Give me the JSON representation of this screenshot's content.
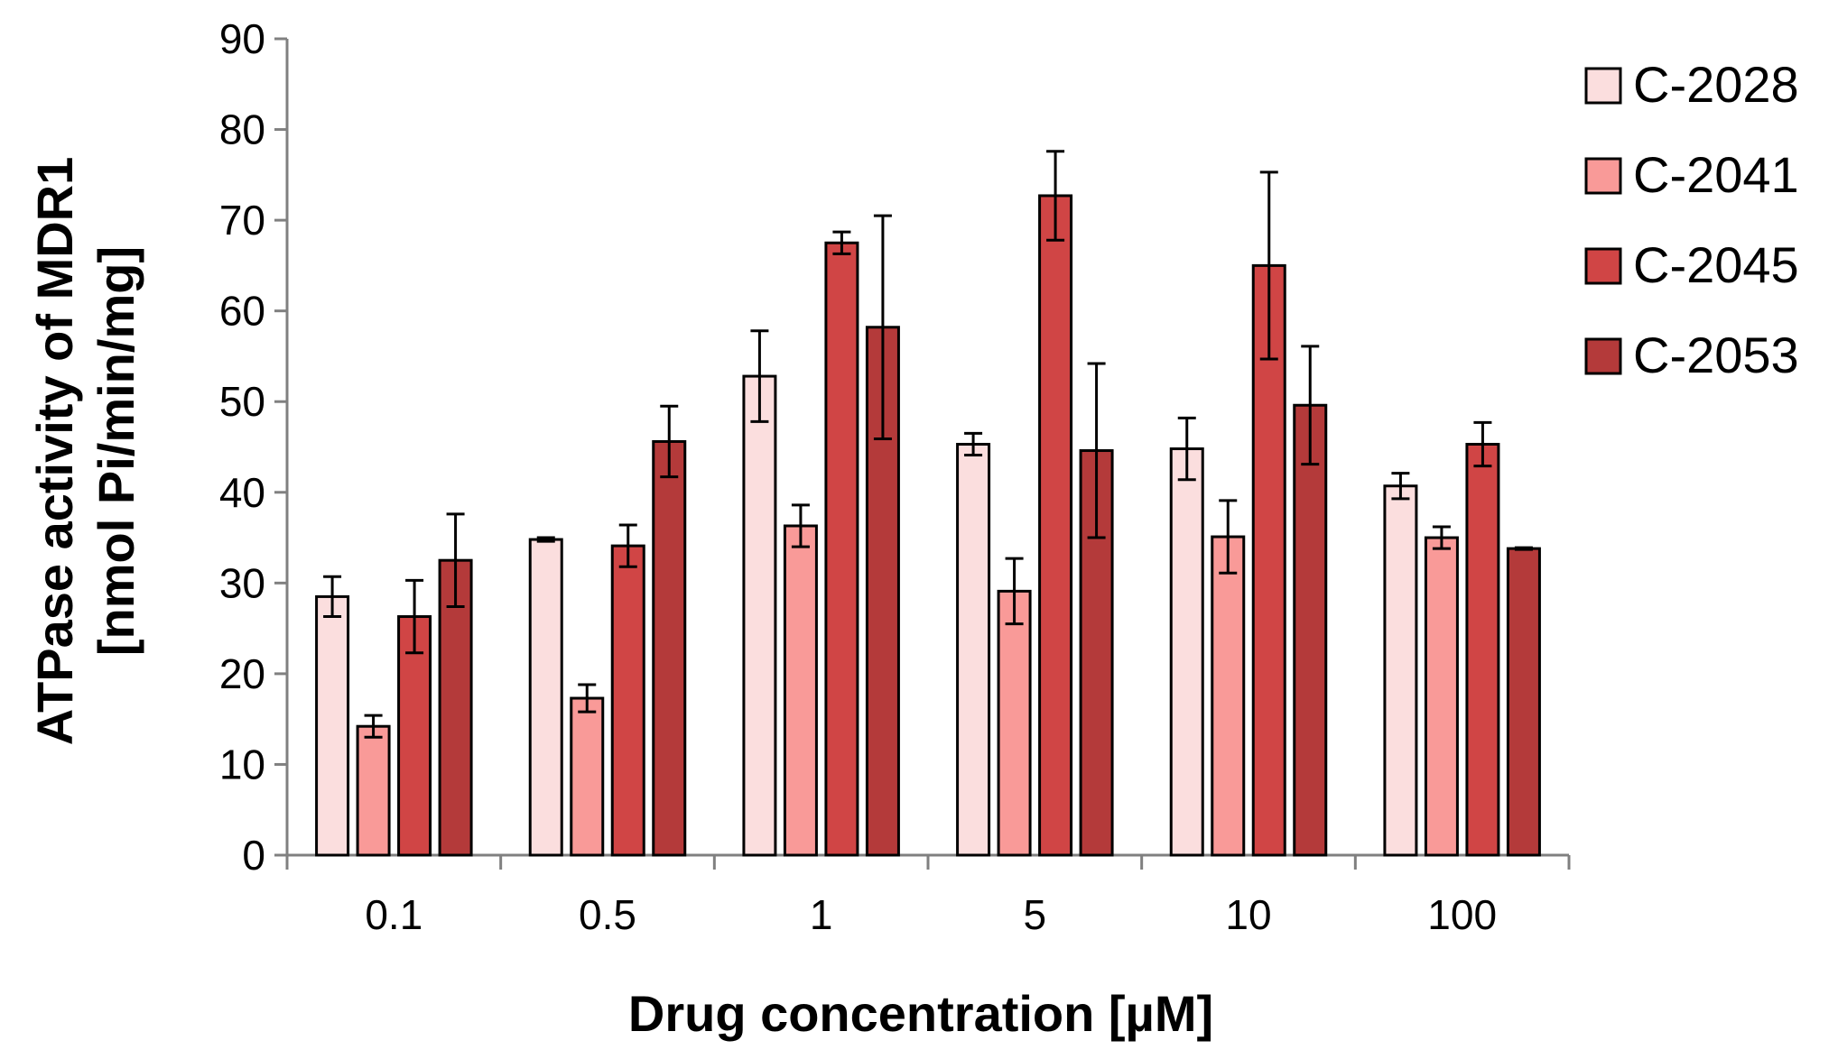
{
  "chart_data": {
    "type": "bar",
    "title": "",
    "xlabel": "Drug concentration [µM]",
    "ylabel_line1": "ATPase activity of MDR1",
    "ylabel_line2": "[nmol Pi/min/mg]",
    "ylim": [
      0,
      90
    ],
    "yticks": [
      "0",
      "10",
      "20",
      "30",
      "40",
      "50",
      "60",
      "70",
      "80",
      "90"
    ],
    "categories": [
      "0.1",
      "0.5",
      "1",
      "5",
      "10",
      "100"
    ],
    "legend_position": "right",
    "series": [
      {
        "name": "C-2028",
        "color": "#fbdede",
        "values": [
          28.5,
          34.8,
          52.8,
          45.3,
          44.8,
          40.7
        ],
        "errors": [
          2.2,
          0.2,
          5.0,
          1.2,
          3.4,
          1.4
        ]
      },
      {
        "name": "C-2041",
        "color": "#f99a98",
        "values": [
          14.2,
          17.3,
          36.3,
          29.1,
          35.1,
          35.0
        ],
        "errors": [
          1.2,
          1.5,
          2.3,
          3.6,
          4.0,
          1.2
        ]
      },
      {
        "name": "C-2045",
        "color": "#d04545",
        "values": [
          26.3,
          34.1,
          67.5,
          72.7,
          65.0,
          45.3
        ],
        "errors": [
          4.0,
          2.3,
          1.2,
          4.9,
          10.3,
          2.4
        ]
      },
      {
        "name": "C-2053",
        "color": "#b43a3a",
        "values": [
          32.5,
          45.6,
          58.2,
          44.6,
          49.6,
          33.8
        ],
        "errors": [
          5.1,
          3.9,
          12.3,
          9.6,
          6.5,
          0.1
        ]
      }
    ]
  }
}
